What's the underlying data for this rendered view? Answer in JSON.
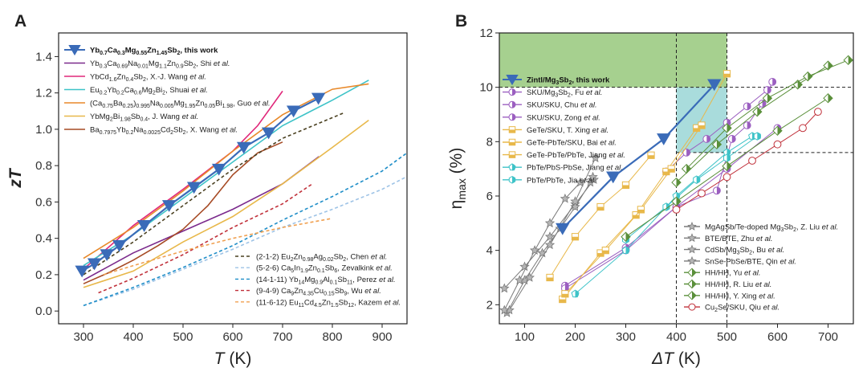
{
  "chart_data": [
    {
      "type": "line",
      "panel": "A",
      "xlabel_var": "T",
      "xlabel_unit": " (K)",
      "ylabel": "zT",
      "xlim": [
        250,
        950
      ],
      "ylim": [
        -0.07,
        1.53
      ],
      "xticks": [
        300,
        400,
        500,
        600,
        700,
        800,
        900
      ],
      "yticks": [
        0.0,
        0.2,
        0.4,
        0.6,
        0.8,
        1.0,
        1.2,
        1.4
      ],
      "ytick_labels": [
        "0.0",
        "0.2",
        "0.4",
        "0.6",
        "0.8",
        "1.0",
        "1.2",
        "1.4"
      ],
      "series": [
        {
          "name": "Yb0.7Ca0.3Mg0.55Zn1.45Sb2, this work",
          "legend": "Yb0.7Ca0.3Mg0.55Zn1.45Sb2, this work",
          "color": "#3a6bb8",
          "style": "solid",
          "marker": "triangle-down",
          "bold": true,
          "x": [
            297,
            322,
            347,
            372,
            422,
            472,
            522,
            572,
            622,
            672,
            722,
            772
          ],
          "y": [
            0.22,
            0.26,
            0.31,
            0.36,
            0.47,
            0.58,
            0.68,
            0.78,
            0.9,
            0.98,
            1.1,
            1.17
          ]
        },
        {
          "name": "Yb0.3Ca0.69Na0.01Mg1.1Zn0.9Sb2, Shi et al.",
          "legend": "Yb0.3Ca0.69Na0.01Mg1.1Zn0.9Sb2, Shi et al.",
          "color": "#7b2a8c",
          "style": "solid",
          "x": [
            300,
            400,
            500,
            600,
            700,
            773
          ],
          "y": [
            0.17,
            0.32,
            0.44,
            0.56,
            0.7,
            0.85
          ]
        },
        {
          "name": "YbCd1.6Zn0.4Sb2, X.-J. Wang et al.",
          "legend": "YbCd1.6Zn0.4Sb2, X.-J. Wang et al.",
          "color": "#e0287a",
          "style": "solid",
          "x": [
            300,
            400,
            500,
            600,
            650,
            700
          ],
          "y": [
            0.23,
            0.47,
            0.67,
            0.88,
            1.02,
            1.21
          ]
        },
        {
          "name": "Eu0.2Yb0.2Ca0.6Mg2Bi2, Shuai et al.",
          "legend": "Eu0.2Yb0.2Ca0.6Mg2Bi2, Shuai et al.",
          "color": "#3ec3c8",
          "style": "solid",
          "x": [
            300,
            400,
            500,
            600,
            700,
            800,
            873
          ],
          "y": [
            0.25,
            0.42,
            0.62,
            0.82,
            1.02,
            1.16,
            1.27
          ]
        },
        {
          "name": "(Ca0.75Ba0.25)0.995Na0.005Mg1.95Zn0.05Bi1.98, Guo et al.",
          "legend": "(Ca0.75Ba0.25)0.995Na0.005Mg1.95Zn0.05Bi1.98, Guo et al.",
          "color": "#e8892a",
          "style": "solid",
          "x": [
            300,
            400,
            500,
            600,
            700,
            800,
            873
          ],
          "y": [
            0.29,
            0.46,
            0.66,
            0.88,
            1.08,
            1.22,
            1.25
          ]
        },
        {
          "name": "YbMg2Bi1.98Sb0.4, J. Wang et al.",
          "legend": "YbMg2Bi1.98Sb0.4, J. Wang et al.",
          "color": "#e8b84a",
          "style": "solid",
          "x": [
            300,
            400,
            500,
            600,
            700,
            800,
            873
          ],
          "y": [
            0.13,
            0.22,
            0.38,
            0.52,
            0.7,
            0.9,
            1.05
          ]
        },
        {
          "name": "Ba0.7975Yb0.2Na0.0025Cd2Sb2, X. Wang et al.",
          "legend": "Ba0.7975Yb0.2Na0.0025Cd2Sb2, X. Wang et al.",
          "color": "#a64a24",
          "style": "solid",
          "x": [
            300,
            350,
            400,
            450,
            500,
            550,
            600,
            650,
            700
          ],
          "y": [
            0.15,
            0.21,
            0.28,
            0.36,
            0.45,
            0.58,
            0.75,
            0.87,
            0.93
          ]
        },
        {
          "name": "(2-1-2) Eu2Zn0.98Ag0.02Sb2, Chen et al.",
          "legend": "(2-1-2) Eu2Zn0.98Ag0.02Sb2, Chen et al.",
          "color": "#4a4020",
          "style": "dash",
          "x": [
            300,
            400,
            500,
            600,
            700,
            823
          ],
          "y": [
            0.2,
            0.38,
            0.58,
            0.78,
            0.95,
            1.09
          ]
        },
        {
          "name": "(5-2-6) Ca5In1.9Zn0.1Sb6, Zevalkink et al.",
          "legend": "(5-2-6) Ca5In1.9Zn0.1Sb6, Zevalkink et al.",
          "color": "#9ec3e6",
          "style": "dash",
          "x": [
            300,
            400,
            500,
            600,
            700,
            800,
            900,
            950
          ],
          "y": [
            0.03,
            0.12,
            0.23,
            0.34,
            0.46,
            0.56,
            0.67,
            0.74
          ]
        },
        {
          "name": "(14-1-11) Yb14Mg0.9Al0.1Sb11, Perez et al.",
          "legend": "(14-1-11) Yb14Mg0.9Al0.1Sb11, Perez et al.",
          "color": "#1f8ec8",
          "style": "dash",
          "x": [
            300,
            400,
            500,
            600,
            700,
            800,
            900,
            950
          ],
          "y": [
            0.03,
            0.13,
            0.24,
            0.36,
            0.5,
            0.63,
            0.77,
            0.87
          ]
        },
        {
          "name": "(9-4-9) Ca9Zn4.35Cu0.15Sb9, Wu et al.",
          "legend": "(9-4-9) Ca9Zn4.35Cu0.15Sb9, Wu et al.",
          "color": "#c0303a",
          "style": "dash",
          "x": [
            330,
            400,
            500,
            600,
            700,
            760
          ],
          "y": [
            0.1,
            0.18,
            0.31,
            0.46,
            0.59,
            0.7
          ]
        },
        {
          "name": "(11-6-12) Eu11Cd4.5Zn1.5Sb12, Kazem et al.",
          "legend": "(11-6-12) Eu11Cd4.5Zn1.5Sb12, Kazem et al.",
          "color": "#f0a050",
          "style": "dash",
          "x": [
            340,
            400,
            500,
            600,
            700,
            800
          ],
          "y": [
            0.2,
            0.25,
            0.33,
            0.4,
            0.46,
            0.51
          ]
        }
      ]
    },
    {
      "type": "line",
      "panel": "B",
      "xlabel_var": "ΔT",
      "xlabel_unit": " (K)",
      "ylabel": "ηmax (%)",
      "xlim": [
        50,
        750
      ],
      "ylim": [
        1.3,
        12
      ],
      "xticks": [
        100,
        200,
        300,
        400,
        500,
        600,
        700
      ],
      "yticks": [
        2,
        4,
        6,
        8,
        10,
        12
      ],
      "ytick_labels": [
        "2",
        "4",
        "6",
        "8",
        "10",
        "12"
      ],
      "annotations": {
        "green_rect": {
          "x": [
            50,
            500
          ],
          "y": [
            10,
            12
          ]
        },
        "cyan_rect": {
          "x": [
            400,
            500
          ],
          "y": [
            7.6,
            10
          ]
        },
        "dashed_x": [
          400,
          500
        ],
        "dashed_y": [
          7.6,
          10
        ]
      },
      "series": [
        {
          "name": "Zintl/Mg3Sb2, this work",
          "legend": "Zintl/Mg3Sb2, this work",
          "color": "#3a6bb8",
          "style": "solid",
          "marker": "triangle-down",
          "bold": true,
          "x": [
            175,
            275,
            375,
            475
          ],
          "y": [
            4.8,
            6.7,
            8.1,
            10.1
          ]
        },
        {
          "name": "SKU/Mg3Sb2, Fu et al.",
          "legend": "SKU/Mg3Sb2, Fu et al.",
          "color": "#9b5fc0",
          "style": "solid",
          "marker": "half-circle",
          "x": [
            180,
            300,
            400,
            480,
            510,
            540,
            570,
            590
          ],
          "y": [
            2.7,
            4.1,
            5.6,
            6.2,
            8.1,
            8.6,
            9.4,
            10.2
          ]
        },
        {
          "name": "SKU/SKU, Chu et al.",
          "legend": "SKU/SKU, Chu et al.",
          "color": "#9b5fc0",
          "style": "solid",
          "marker": "half-circle",
          "x": [
            180,
            300,
            400,
            500,
            600
          ],
          "y": [
            2.6,
            4.0,
            5.6,
            7.0,
            8.5
          ]
        },
        {
          "name": "SKU/SKU, Zong et al.",
          "legend": "SKU/SKU, Zong et al.",
          "color": "#9b5fc0",
          "style": "solid",
          "marker": "half-circle",
          "x": [
            380,
            420,
            460,
            500,
            540,
            580
          ],
          "y": [
            6.9,
            7.6,
            8.1,
            8.7,
            9.3,
            9.9
          ]
        },
        {
          "name": "GeTe/SKU, T. Xing et al.",
          "legend": "GeTe/SKU, T. Xing et al.",
          "color": "#e8b84a",
          "style": "solid",
          "marker": "half-square",
          "x": [
            175,
            250,
            320,
            380,
            440,
            500
          ],
          "y": [
            2.2,
            3.9,
            5.3,
            6.9,
            8.5,
            10.5
          ]
        },
        {
          "name": "GeTe-PbTe/SKU, Bai et al.",
          "legend": "GeTe-PbTe/SKU, Bai et al.",
          "color": "#e8b84a",
          "style": "solid",
          "marker": "half-square",
          "x": [
            180,
            260,
            330,
            390,
            450
          ],
          "y": [
            2.4,
            4.0,
            5.5,
            7.0,
            8.6
          ]
        },
        {
          "name": "GeTe-PbTe/PbTe, Jiang et al.",
          "legend": "GeTe-PbTe/PbTe, Jiang et al.",
          "color": "#e8b84a",
          "style": "solid",
          "marker": "half-square",
          "x": [
            150,
            200,
            250,
            300,
            350
          ],
          "y": [
            3.0,
            4.5,
            5.6,
            6.4,
            7.5
          ]
        },
        {
          "name": "PbTe/PbS-PbSe, Jiang et al.",
          "legend": "PbTe/PbS-PbSe, Jiang et al.",
          "color": "#3ec3c8",
          "style": "solid",
          "marker": "half-pentagon",
          "x": [
            200,
            300,
            400,
            500,
            550
          ],
          "y": [
            2.4,
            4.0,
            6.0,
            7.6,
            8.2
          ]
        },
        {
          "name": "PbTe/PbTe, Jia et al.",
          "legend": "PbTe/PbTe, Jia et al.",
          "color": "#3ec3c8",
          "style": "solid",
          "marker": "half-hexagon",
          "x": [
            300,
            380,
            440,
            500,
            560
          ],
          "y": [
            4.4,
            5.6,
            6.6,
            7.4,
            8.2
          ]
        },
        {
          "name": "MgAgSb/Te-doped Mg3Sb2, Z. Liu et al.",
          "legend": "MgAgSb/Te-doped Mg3Sb2, Z. Liu et al.",
          "color": "#7a7a7a",
          "style": "solid",
          "marker": "star",
          "x": [
            60,
            100,
            150,
            200,
            237
          ],
          "y": [
            2.6,
            3.4,
            4.5,
            5.7,
            6.6
          ]
        },
        {
          "name": "BTE/BTE, Zhu et al.",
          "legend": "BTE/BTE, Zhu et al.",
          "color": "#7a7a7a",
          "style": "solid",
          "marker": "star",
          "x": [
            65,
            100,
            135,
            170,
            200,
            230
          ],
          "y": [
            1.7,
            2.9,
            3.9,
            4.8,
            5.6,
            6.5
          ]
        },
        {
          "name": "CdSb/Mg3Sb2, Bu et al.",
          "legend": "CdSb/Mg3Sb2, Bu et al.",
          "color": "#7a7a7a",
          "style": "solid",
          "marker": "star",
          "x": [
            70,
            110,
            150,
            200,
            240
          ],
          "y": [
            1.8,
            3.0,
            4.2,
            5.8,
            7.4
          ]
        },
        {
          "name": "SnSe-PbSe/BTE, Qin et al.",
          "legend": "SnSe-PbSe/BTE, Qin et al.",
          "color": "#7a7a7a",
          "style": "solid",
          "marker": "star",
          "x": [
            60,
            90,
            120,
            150,
            180,
            210,
            235
          ],
          "y": [
            1.8,
            2.9,
            4.0,
            5.0,
            5.9,
            6.5,
            6.7
          ]
        },
        {
          "name": "HH/HH, Yu et al.",
          "legend": "HH/HH, Yu et al.",
          "color": "#5a8f3a",
          "style": "solid",
          "marker": "half-diamond",
          "x": [
            300,
            400,
            500,
            600,
            700
          ],
          "y": [
            4.5,
            5.8,
            7.1,
            8.4,
            9.6
          ]
        },
        {
          "name": "HH/HH, R. Liu et al.",
          "legend": "HH/HH, R. Liu et al.",
          "color": "#5a8f3a",
          "style": "solid",
          "marker": "half-diamond",
          "x": [
            400,
            480,
            560,
            640,
            700
          ],
          "y": [
            6.5,
            7.9,
            9.1,
            10.1,
            10.8
          ]
        },
        {
          "name": "HH/HH, Y. Xing et al.",
          "legend": "HH/HH, Y. Xing et al.",
          "color": "#5a8f3a",
          "style": "solid",
          "marker": "half-diamond",
          "x": [
            420,
            500,
            580,
            660,
            740
          ],
          "y": [
            7.0,
            8.5,
            9.6,
            10.4,
            11.0
          ]
        },
        {
          "name": "Cu2Se/SKU, Qiu et al.",
          "legend": "Cu2Se/SKU, Qiu et al.",
          "color": "#c0303a",
          "style": "solid",
          "marker": "circle",
          "x": [
            400,
            450,
            500,
            550,
            600,
            650,
            680
          ],
          "y": [
            5.5,
            6.1,
            6.7,
            7.3,
            7.9,
            8.5,
            9.1
          ]
        }
      ]
    }
  ]
}
